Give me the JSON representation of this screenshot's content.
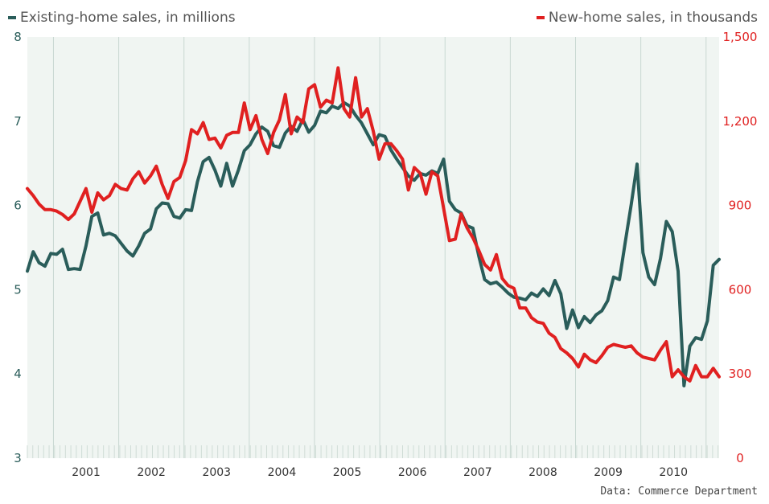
{
  "chart_data": {
    "type": "line",
    "legend_placement": "top",
    "source": "Data: Commerce Department",
    "x_labels": [
      "2001",
      "2002",
      "2003",
      "2004",
      "2005",
      "2006",
      "2007",
      "2008",
      "2009",
      "2010"
    ],
    "y_left": {
      "ticks": [
        "3",
        "4",
        "5",
        "6",
        "7",
        "8"
      ],
      "min": 3,
      "max": 8,
      "color": "#2a5d5a"
    },
    "y_right": {
      "ticks": [
        "0",
        "300",
        "600",
        "900",
        "1,200",
        "1,500"
      ],
      "min": 0,
      "max": 1500,
      "color": "#e02020"
    },
    "grid": "vertical",
    "series": [
      {
        "name": "Existing-home sales, in millions",
        "axis": "left",
        "color": "#2a5d5a",
        "values": [
          5.22,
          5.45,
          5.32,
          5.28,
          5.43,
          5.42,
          5.48,
          5.24,
          5.25,
          5.24,
          5.52,
          5.87,
          5.91,
          5.65,
          5.67,
          5.64,
          5.55,
          5.46,
          5.4,
          5.52,
          5.67,
          5.72,
          5.96,
          6.03,
          6.02,
          5.87,
          5.85,
          5.95,
          5.94,
          6.28,
          6.52,
          6.57,
          6.42,
          6.23,
          6.5,
          6.23,
          6.42,
          6.65,
          6.72,
          6.85,
          6.93,
          6.88,
          6.71,
          6.69,
          6.86,
          6.94,
          6.88,
          7.02,
          6.87,
          6.95,
          7.12,
          7.1,
          7.18,
          7.15,
          7.22,
          7.18,
          7.07,
          6.98,
          6.85,
          6.72,
          6.84,
          6.82,
          6.66,
          6.55,
          6.45,
          6.35,
          6.3,
          6.38,
          6.36,
          6.41,
          6.38,
          6.55,
          6.05,
          5.95,
          5.91,
          5.76,
          5.73,
          5.4,
          5.12,
          5.07,
          5.09,
          5.03,
          4.96,
          4.91,
          4.9,
          4.88,
          4.96,
          4.92,
          5.01,
          4.93,
          5.11,
          4.95,
          4.54,
          4.76,
          4.55,
          4.68,
          4.61,
          4.7,
          4.75,
          4.87,
          5.15,
          5.12,
          5.57,
          6.01,
          6.49,
          5.44,
          5.15,
          5.06,
          5.37,
          5.81,
          5.69,
          5.22,
          3.86,
          4.33,
          4.43,
          4.41,
          4.63,
          5.29,
          5.36
        ]
      },
      {
        "name": "New-home sales, in thousands",
        "axis": "right",
        "color": "#e02020",
        "values": [
          960,
          935,
          905,
          885,
          885,
          880,
          868,
          850,
          870,
          915,
          960,
          876,
          945,
          920,
          935,
          975,
          960,
          955,
          995,
          1020,
          980,
          1005,
          1040,
          975,
          925,
          985,
          1000,
          1060,
          1170,
          1155,
          1195,
          1135,
          1140,
          1105,
          1150,
          1160,
          1160,
          1265,
          1170,
          1220,
          1135,
          1085,
          1160,
          1205,
          1295,
          1155,
          1215,
          1195,
          1315,
          1330,
          1250,
          1275,
          1265,
          1390,
          1245,
          1215,
          1355,
          1215,
          1245,
          1165,
          1065,
          1120,
          1120,
          1095,
          1065,
          955,
          1035,
          1015,
          940,
          1020,
          1005,
          890,
          775,
          780,
          870,
          820,
          785,
          740,
          690,
          670,
          725,
          640,
          615,
          605,
          535,
          535,
          500,
          485,
          480,
          445,
          430,
          390,
          375,
          355,
          325,
          370,
          350,
          340,
          365,
          395,
          405,
          400,
          395,
          400,
          375,
          360,
          355,
          350,
          385,
          415,
          290,
          315,
          290,
          275,
          330,
          290,
          290,
          320,
          290
        ]
      }
    ]
  }
}
